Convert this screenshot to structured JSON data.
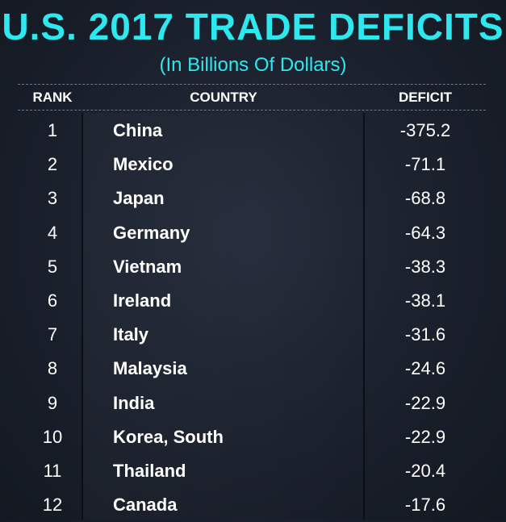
{
  "title": "U.S. 2017 TRADE DEFICITS",
  "subtitle": "(In Billions Of Dollars)",
  "colors": {
    "title": "#2ee8f0",
    "background": "#1a202c",
    "text": "#ffffff"
  },
  "chart_data": {
    "type": "table",
    "title": "U.S. 2017 TRADE DEFICITS",
    "subtitle": "(In Billions Of Dollars)",
    "columns": [
      "RANK",
      "COUNTRY",
      "DEFICIT"
    ],
    "rows": [
      {
        "rank": "1",
        "country": "China",
        "deficit": "-375.2"
      },
      {
        "rank": "2",
        "country": "Mexico",
        "deficit": "-71.1"
      },
      {
        "rank": "3",
        "country": "Japan",
        "deficit": "-68.8"
      },
      {
        "rank": "4",
        "country": "Germany",
        "deficit": "-64.3"
      },
      {
        "rank": "5",
        "country": "Vietnam",
        "deficit": "-38.3"
      },
      {
        "rank": "6",
        "country": "Ireland",
        "deficit": "-38.1"
      },
      {
        "rank": "7",
        "country": "Italy",
        "deficit": "-31.6"
      },
      {
        "rank": "8",
        "country": "Malaysia",
        "deficit": "-24.6"
      },
      {
        "rank": "9",
        "country": "India",
        "deficit": "-22.9"
      },
      {
        "rank": "10",
        "country": "Korea, South",
        "deficit": "-22.9"
      },
      {
        "rank": "11",
        "country": "Thailand",
        "deficit": "-20.4"
      },
      {
        "rank": "12",
        "country": "Canada",
        "deficit": "-17.6"
      }
    ]
  }
}
